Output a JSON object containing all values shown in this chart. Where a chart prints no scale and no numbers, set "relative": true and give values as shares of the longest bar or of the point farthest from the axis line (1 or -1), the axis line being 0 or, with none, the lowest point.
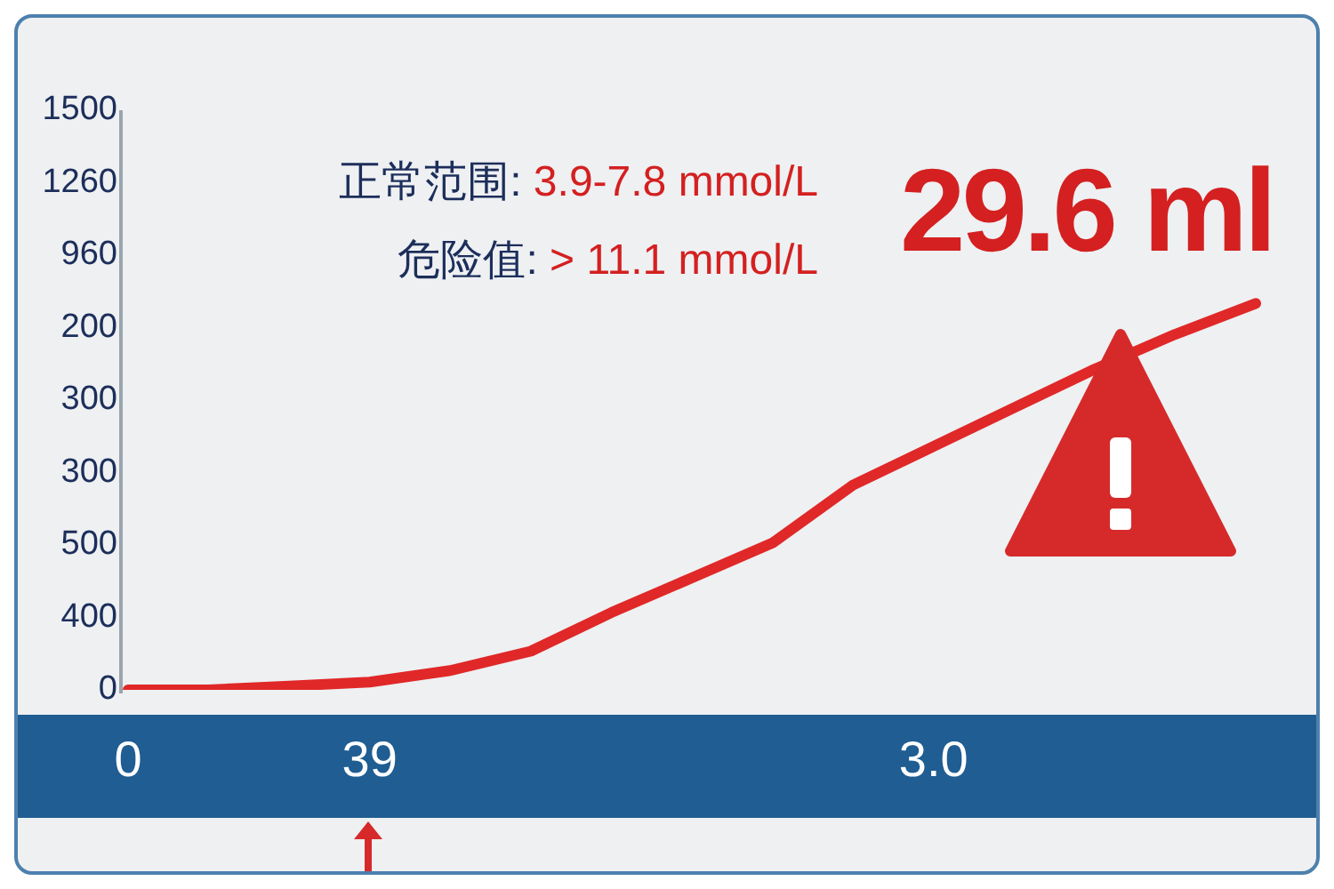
{
  "chart_data": {
    "type": "line",
    "relative": true,
    "categories": [
      "0",
      null,
      null,
      "39",
      null,
      null,
      null,
      null,
      null,
      null,
      "3.0",
      null,
      null,
      null,
      null
    ],
    "y_categories": [
      "1500",
      "1260",
      "960",
      "200",
      "300",
      "300",
      "500",
      "400",
      "0"
    ],
    "series": [
      {
        "color": "#e02828",
        "values": [
          0,
          0,
          0.01,
          0.02,
          0.05,
          0.1,
          0.2,
          0.29,
          0.38,
          0.53,
          0.63,
          0.73,
          0.83,
          0.92,
          1
        ]
      }
    ],
    "grid": false,
    "legend": false,
    "line_style": "solid",
    "annotations": [
      "正常范围: 3.9-7.8 mmol/L",
      "危险值: > 11.1 mmol/L",
      "29.6 ml"
    ]
  }
}
